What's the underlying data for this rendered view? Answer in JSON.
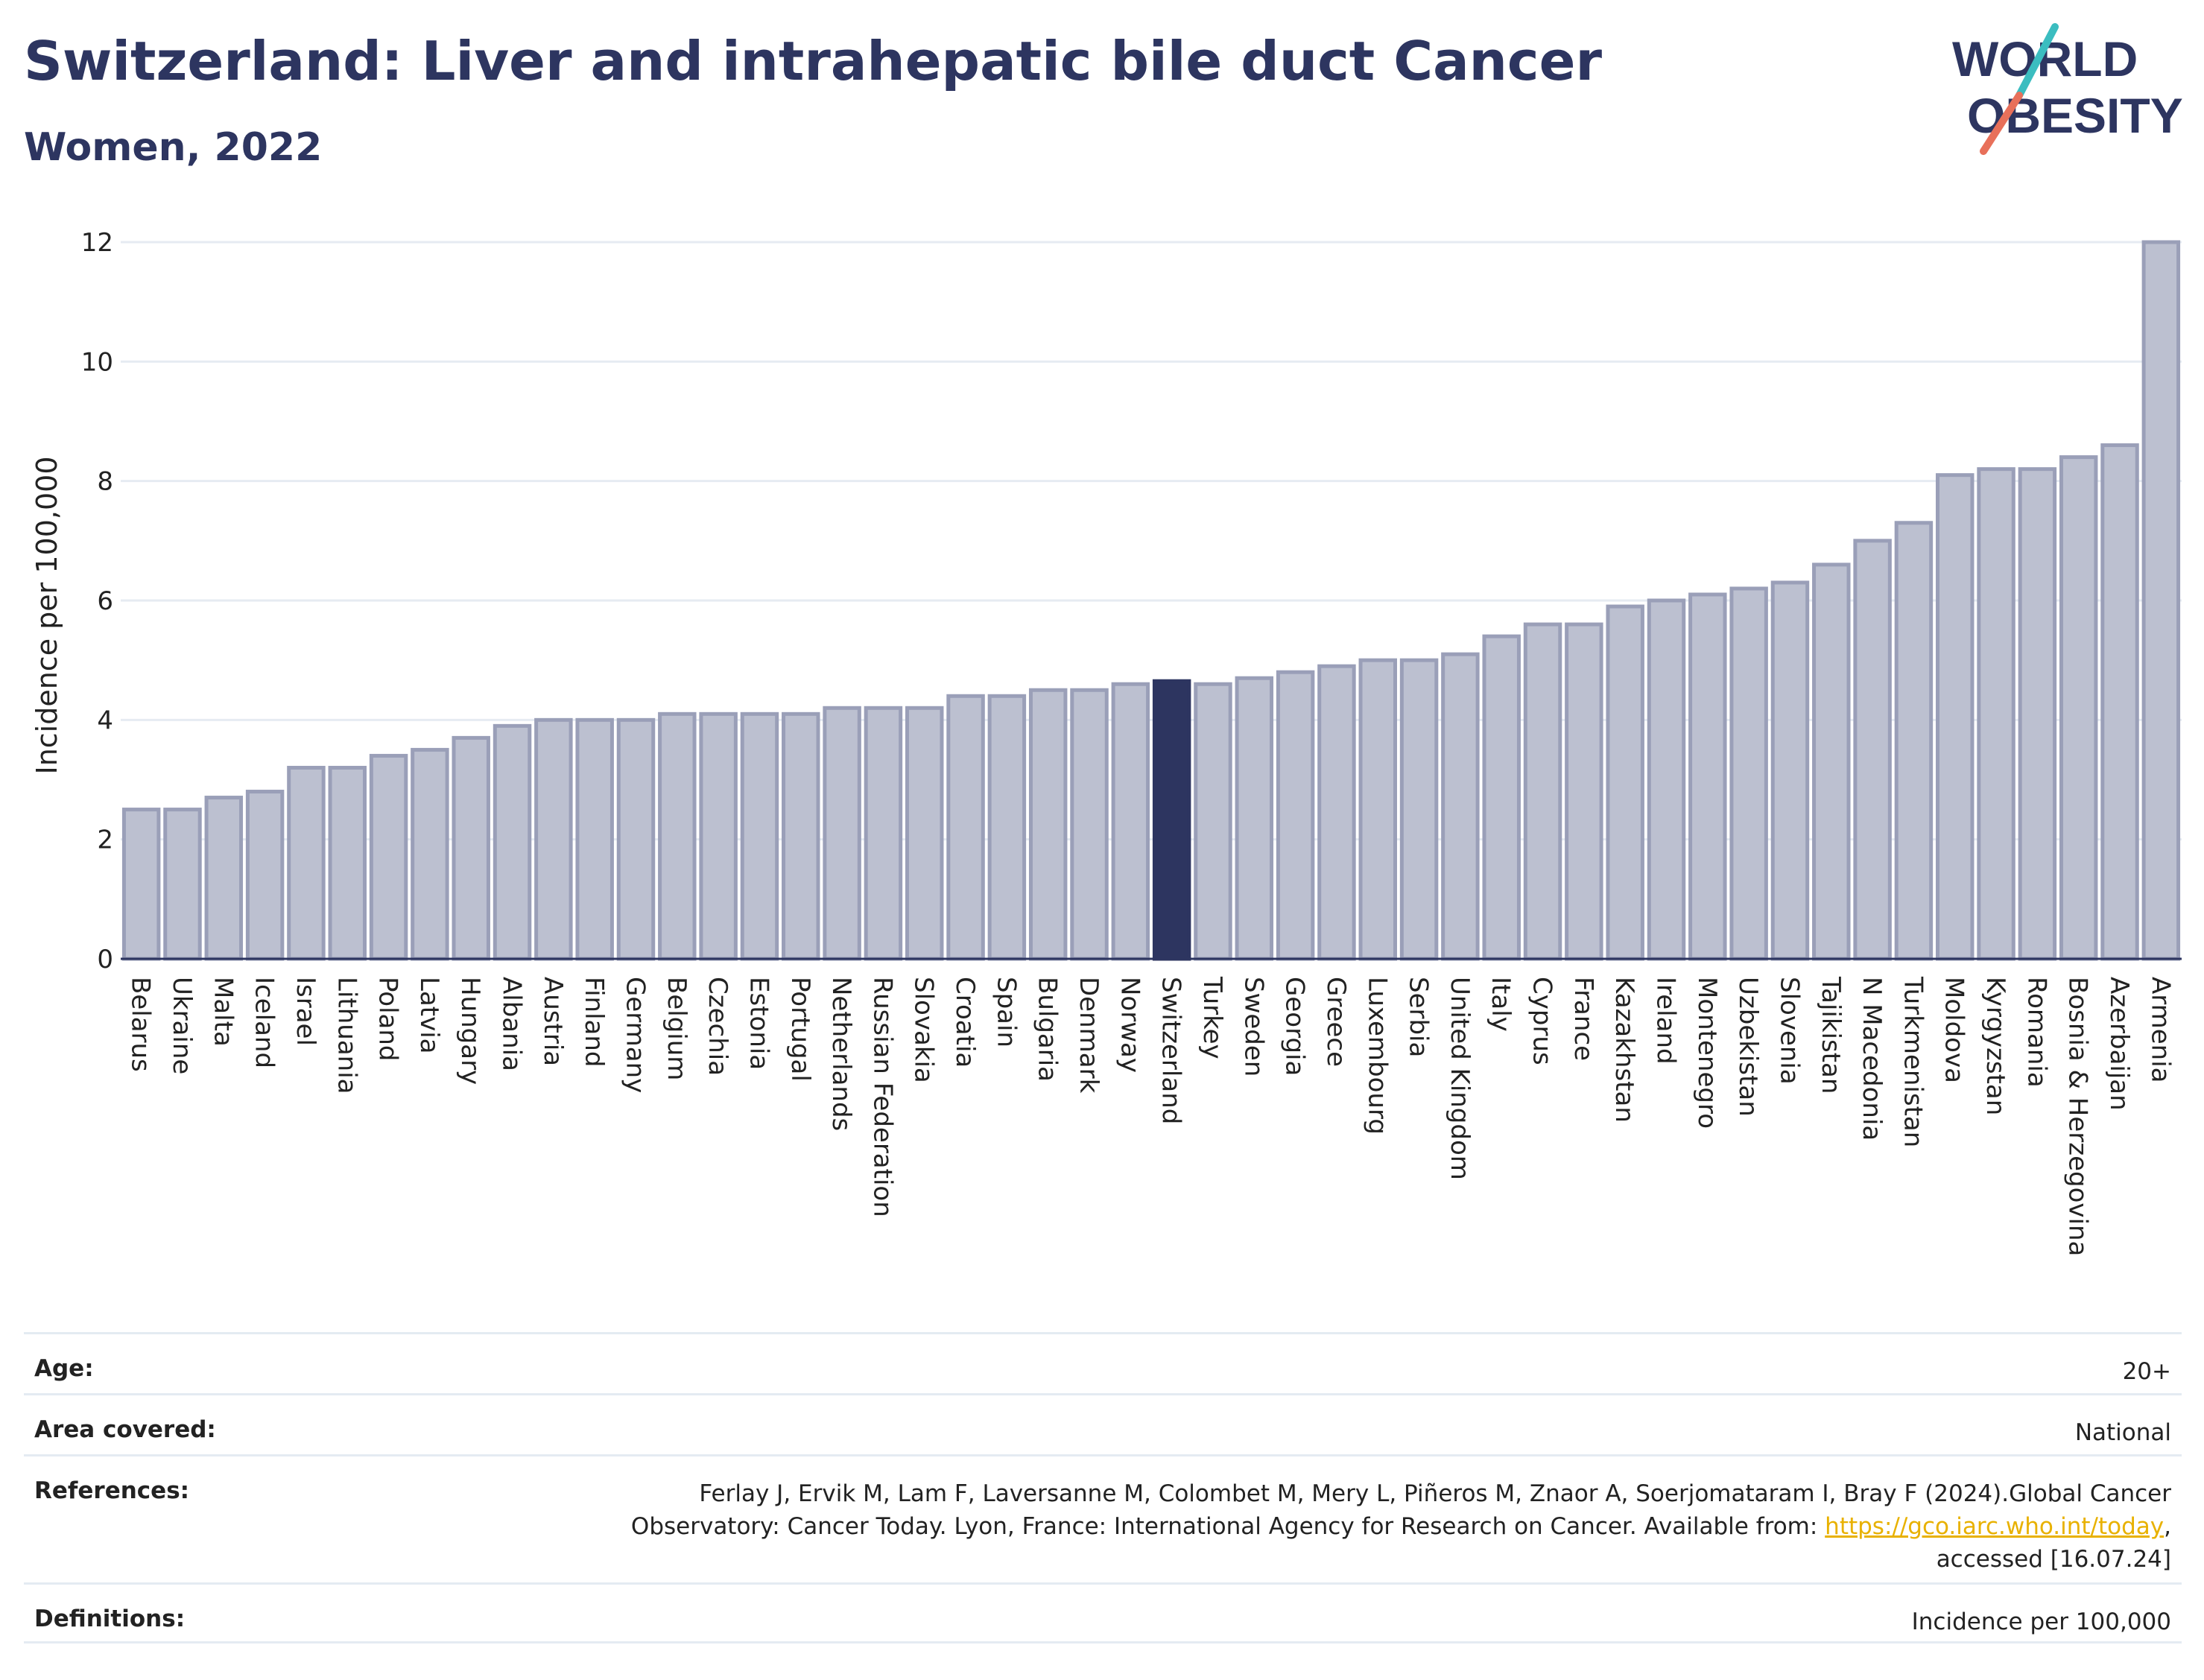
{
  "header": {
    "title": "Switzerland: Liver and intrahepatic bile duct Cancer",
    "subtitle": "Women, 2022"
  },
  "logo": {
    "line1": "WORLD",
    "line2": "OBESITY",
    "colors": {
      "text": "#2d3560",
      "slash_top": "#3bbdc0",
      "slash_bottom": "#e8705a"
    }
  },
  "chart_data": {
    "type": "bar",
    "title": "Switzerland: Liver and intrahepatic bile duct Cancer",
    "subtitle": "Women, 2022",
    "xlabel": "",
    "ylabel": "Incidence per 100,000",
    "ylim": [
      0,
      12
    ],
    "yticks": [
      0,
      2,
      4,
      6,
      8,
      10,
      12
    ],
    "grid": true,
    "highlight": "Switzerland",
    "colors": {
      "bar": "#bcc0d0",
      "bar_edge": "#9a9fb8",
      "highlight": "#2d3560"
    },
    "categories": [
      "Belarus",
      "Ukraine",
      "Malta",
      "Iceland",
      "Israel",
      "Lithuania",
      "Poland",
      "Latvia",
      "Hungary",
      "Albania",
      "Austria",
      "Finland",
      "Germany",
      "Belgium",
      "Czechia",
      "Estonia",
      "Portugal",
      "Netherlands",
      "Russian Federation",
      "Slovakia",
      "Croatia",
      "Spain",
      "Bulgaria",
      "Denmark",
      "Norway",
      "Switzerland",
      "Turkey",
      "Sweden",
      "Georgia",
      "Greece",
      "Luxembourg",
      "Serbia",
      "United Kingdom",
      "Italy",
      "Cyprus",
      "France",
      "Kazakhstan",
      "Ireland",
      "Montenegro",
      "Uzbekistan",
      "Slovenia",
      "Tajikistan",
      "N Macedonia",
      "Turkmenistan",
      "Moldova",
      "Kyrgyzstan",
      "Romania",
      "Bosnia & Herzegovina",
      "Azerbaijan",
      "Armenia"
    ],
    "values": [
      2.5,
      2.5,
      2.7,
      2.8,
      3.2,
      3.2,
      3.4,
      3.5,
      3.7,
      3.9,
      4.0,
      4.0,
      4.0,
      4.1,
      4.1,
      4.1,
      4.1,
      4.2,
      4.2,
      4.2,
      4.4,
      4.4,
      4.5,
      4.5,
      4.6,
      4.65,
      4.6,
      4.7,
      4.8,
      4.9,
      5.0,
      5.0,
      5.1,
      5.4,
      5.6,
      5.6,
      5.9,
      6.0,
      6.1,
      6.2,
      6.3,
      6.6,
      7.0,
      7.3,
      8.1,
      8.2,
      8.2,
      8.4,
      8.6,
      12.0
    ]
  },
  "info": {
    "age": {
      "label": "Age:",
      "value": "20+"
    },
    "area": {
      "label": "Area covered:",
      "value": "National"
    },
    "references": {
      "label": "References:",
      "line1": "Ferlay J, Ervik M, Lam F, Laversanne M, Colombet M, Mery L, Piñeros M, Znaor A, Soerjomataram I, Bray F (2024).Global Cancer",
      "line2_prefix": "Observatory: Cancer Today. Lyon, France: International Agency for Research on Cancer. Available from: ",
      "link": "https://gco.iarc.who.int/today",
      "line2_suffix": ",",
      "line3": "accessed [16.07.24]"
    },
    "definitions": {
      "label": "Definitions:",
      "value": "Incidence per 100,000"
    }
  }
}
